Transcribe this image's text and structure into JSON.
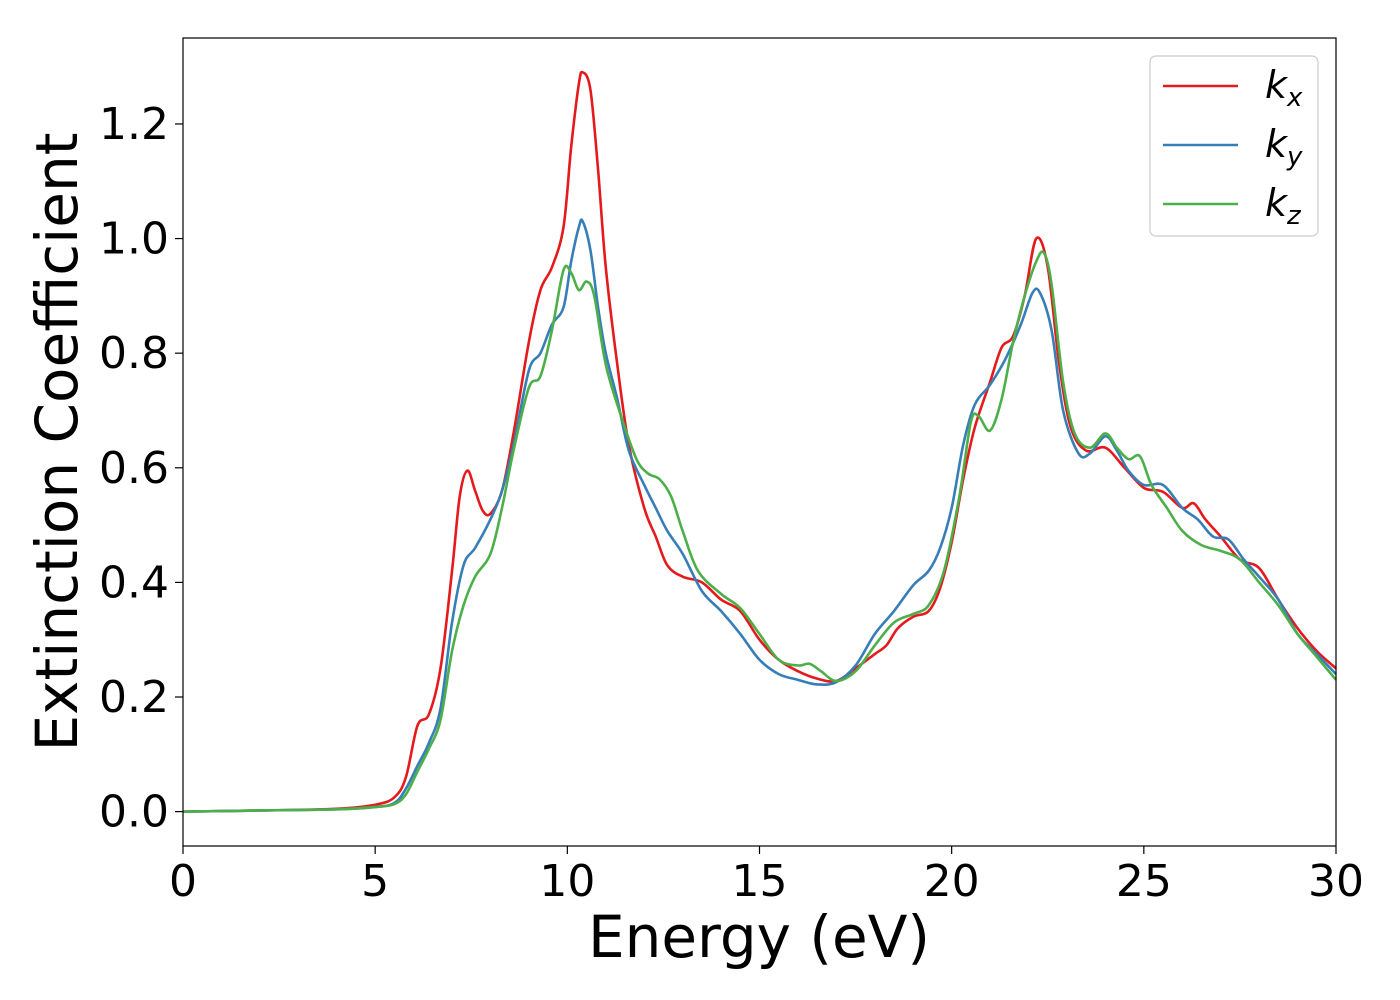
{
  "chart_data": {
    "type": "line",
    "title": "",
    "xlabel": "Energy (eV)",
    "ylabel": "Extinction Coefficient",
    "xlim": [
      0,
      30
    ],
    "ylim": [
      -0.06,
      1.35
    ],
    "xticks": [
      0,
      5,
      10,
      15,
      20,
      25,
      30
    ],
    "xtick_labels": [
      "0",
      "5",
      "10",
      "15",
      "20",
      "25",
      "30"
    ],
    "yticks": [
      0.0,
      0.2,
      0.4,
      0.6,
      0.8,
      1.0,
      1.2
    ],
    "ytick_labels": [
      "0.0",
      "0.2",
      "0.4",
      "0.6",
      "0.8",
      "1.0",
      "1.2"
    ],
    "grid": false,
    "legend_position": "top-right",
    "series": [
      {
        "name": "k_x",
        "label_base": "k",
        "label_sub": "x",
        "color": "#e41a1c",
        "points": [
          [
            0,
            0.0
          ],
          [
            2,
            0.002
          ],
          [
            4,
            0.005
          ],
          [
            5,
            0.012
          ],
          [
            5.5,
            0.025
          ],
          [
            5.8,
            0.06
          ],
          [
            6.1,
            0.15
          ],
          [
            6.4,
            0.17
          ],
          [
            6.7,
            0.25
          ],
          [
            7.0,
            0.42
          ],
          [
            7.2,
            0.55
          ],
          [
            7.4,
            0.595
          ],
          [
            7.6,
            0.56
          ],
          [
            7.8,
            0.525
          ],
          [
            8.0,
            0.52
          ],
          [
            8.3,
            0.56
          ],
          [
            8.6,
            0.66
          ],
          [
            9.0,
            0.82
          ],
          [
            9.3,
            0.91
          ],
          [
            9.6,
            0.95
          ],
          [
            9.9,
            1.02
          ],
          [
            10.1,
            1.16
          ],
          [
            10.3,
            1.27
          ],
          [
            10.4,
            1.29
          ],
          [
            10.6,
            1.26
          ],
          [
            10.8,
            1.12
          ],
          [
            11.0,
            0.95
          ],
          [
            11.3,
            0.78
          ],
          [
            11.6,
            0.64
          ],
          [
            12.0,
            0.53
          ],
          [
            12.3,
            0.48
          ],
          [
            12.6,
            0.43
          ],
          [
            13.0,
            0.41
          ],
          [
            13.5,
            0.4
          ],
          [
            14.0,
            0.37
          ],
          [
            14.5,
            0.35
          ],
          [
            15.0,
            0.3
          ],
          [
            15.5,
            0.265
          ],
          [
            16.0,
            0.245
          ],
          [
            16.5,
            0.232
          ],
          [
            17.0,
            0.228
          ],
          [
            17.5,
            0.25
          ],
          [
            18.0,
            0.275
          ],
          [
            18.3,
            0.29
          ],
          [
            18.6,
            0.32
          ],
          [
            19.0,
            0.34
          ],
          [
            19.4,
            0.35
          ],
          [
            19.7,
            0.39
          ],
          [
            20.0,
            0.47
          ],
          [
            20.3,
            0.58
          ],
          [
            20.6,
            0.67
          ],
          [
            21.0,
            0.75
          ],
          [
            21.3,
            0.81
          ],
          [
            21.6,
            0.83
          ],
          [
            21.9,
            0.9
          ],
          [
            22.2,
            1.0
          ],
          [
            22.5,
            0.95
          ],
          [
            22.8,
            0.78
          ],
          [
            23.1,
            0.67
          ],
          [
            23.5,
            0.63
          ],
          [
            24.0,
            0.635
          ],
          [
            24.5,
            0.6
          ],
          [
            25.0,
            0.565
          ],
          [
            25.5,
            0.558
          ],
          [
            26.0,
            0.53
          ],
          [
            26.3,
            0.538
          ],
          [
            26.6,
            0.51
          ],
          [
            27.0,
            0.48
          ],
          [
            27.5,
            0.44
          ],
          [
            28.0,
            0.425
          ],
          [
            28.5,
            0.37
          ],
          [
            29.0,
            0.32
          ],
          [
            29.5,
            0.28
          ],
          [
            30.0,
            0.25
          ]
        ]
      },
      {
        "name": "k_y",
        "label_base": "k",
        "label_sub": "y",
        "color": "#377eb8",
        "points": [
          [
            0,
            0.0
          ],
          [
            2,
            0.002
          ],
          [
            4,
            0.004
          ],
          [
            5,
            0.008
          ],
          [
            5.5,
            0.015
          ],
          [
            5.8,
            0.04
          ],
          [
            6.1,
            0.08
          ],
          [
            6.4,
            0.12
          ],
          [
            6.7,
            0.18
          ],
          [
            7.0,
            0.33
          ],
          [
            7.3,
            0.43
          ],
          [
            7.6,
            0.46
          ],
          [
            8.0,
            0.51
          ],
          [
            8.3,
            0.56
          ],
          [
            8.6,
            0.64
          ],
          [
            9.0,
            0.77
          ],
          [
            9.3,
            0.8
          ],
          [
            9.6,
            0.85
          ],
          [
            9.9,
            0.88
          ],
          [
            10.1,
            0.96
          ],
          [
            10.3,
            1.02
          ],
          [
            10.4,
            1.03
          ],
          [
            10.6,
            0.98
          ],
          [
            10.8,
            0.88
          ],
          [
            11.0,
            0.8
          ],
          [
            11.3,
            0.72
          ],
          [
            11.6,
            0.63
          ],
          [
            12.0,
            0.57
          ],
          [
            12.3,
            0.53
          ],
          [
            12.6,
            0.49
          ],
          [
            13.0,
            0.45
          ],
          [
            13.5,
            0.385
          ],
          [
            14.0,
            0.35
          ],
          [
            14.5,
            0.31
          ],
          [
            15.0,
            0.265
          ],
          [
            15.5,
            0.24
          ],
          [
            16.0,
            0.23
          ],
          [
            16.5,
            0.222
          ],
          [
            17.0,
            0.226
          ],
          [
            17.5,
            0.255
          ],
          [
            18.0,
            0.31
          ],
          [
            18.5,
            0.35
          ],
          [
            19.0,
            0.395
          ],
          [
            19.4,
            0.42
          ],
          [
            19.7,
            0.46
          ],
          [
            20.0,
            0.53
          ],
          [
            20.3,
            0.64
          ],
          [
            20.6,
            0.71
          ],
          [
            21.0,
            0.745
          ],
          [
            21.4,
            0.79
          ],
          [
            21.8,
            0.85
          ],
          [
            22.1,
            0.905
          ],
          [
            22.3,
            0.905
          ],
          [
            22.6,
            0.84
          ],
          [
            22.9,
            0.7
          ],
          [
            23.3,
            0.625
          ],
          [
            23.6,
            0.625
          ],
          [
            24.0,
            0.655
          ],
          [
            24.3,
            0.63
          ],
          [
            24.6,
            0.595
          ],
          [
            25.0,
            0.57
          ],
          [
            25.5,
            0.57
          ],
          [
            26.0,
            0.53
          ],
          [
            26.4,
            0.51
          ],
          [
            26.8,
            0.48
          ],
          [
            27.2,
            0.475
          ],
          [
            27.6,
            0.44
          ],
          [
            28.0,
            0.41
          ],
          [
            28.5,
            0.37
          ],
          [
            29.0,
            0.31
          ],
          [
            29.5,
            0.275
          ],
          [
            30.0,
            0.24
          ]
        ]
      },
      {
        "name": "k_z",
        "label_base": "k",
        "label_sub": "z",
        "color": "#4daf4a",
        "points": [
          [
            0,
            0.0
          ],
          [
            2,
            0.002
          ],
          [
            4,
            0.004
          ],
          [
            5,
            0.008
          ],
          [
            5.5,
            0.013
          ],
          [
            5.8,
            0.03
          ],
          [
            6.1,
            0.07
          ],
          [
            6.4,
            0.11
          ],
          [
            6.7,
            0.16
          ],
          [
            7.0,
            0.28
          ],
          [
            7.3,
            0.36
          ],
          [
            7.6,
            0.41
          ],
          [
            8.0,
            0.45
          ],
          [
            8.3,
            0.53
          ],
          [
            8.6,
            0.63
          ],
          [
            9.0,
            0.74
          ],
          [
            9.3,
            0.76
          ],
          [
            9.6,
            0.84
          ],
          [
            9.9,
            0.945
          ],
          [
            10.1,
            0.94
          ],
          [
            10.3,
            0.91
          ],
          [
            10.5,
            0.925
          ],
          [
            10.7,
            0.9
          ],
          [
            11.0,
            0.78
          ],
          [
            11.4,
            0.69
          ],
          [
            11.8,
            0.615
          ],
          [
            12.1,
            0.59
          ],
          [
            12.4,
            0.58
          ],
          [
            12.7,
            0.55
          ],
          [
            13.0,
            0.49
          ],
          [
            13.4,
            0.42
          ],
          [
            14.0,
            0.38
          ],
          [
            14.5,
            0.355
          ],
          [
            15.0,
            0.31
          ],
          [
            15.5,
            0.265
          ],
          [
            16.0,
            0.255
          ],
          [
            16.3,
            0.258
          ],
          [
            16.6,
            0.245
          ],
          [
            17.0,
            0.228
          ],
          [
            17.5,
            0.245
          ],
          [
            18.0,
            0.29
          ],
          [
            18.5,
            0.33
          ],
          [
            19.0,
            0.345
          ],
          [
            19.4,
            0.36
          ],
          [
            19.8,
            0.42
          ],
          [
            20.2,
            0.55
          ],
          [
            20.5,
            0.68
          ],
          [
            20.7,
            0.69
          ],
          [
            21.0,
            0.665
          ],
          [
            21.3,
            0.72
          ],
          [
            21.6,
            0.82
          ],
          [
            21.9,
            0.9
          ],
          [
            22.2,
            0.96
          ],
          [
            22.4,
            0.975
          ],
          [
            22.6,
            0.92
          ],
          [
            22.9,
            0.75
          ],
          [
            23.2,
            0.66
          ],
          [
            23.6,
            0.635
          ],
          [
            24.0,
            0.66
          ],
          [
            24.3,
            0.635
          ],
          [
            24.6,
            0.615
          ],
          [
            24.9,
            0.62
          ],
          [
            25.2,
            0.57
          ],
          [
            25.6,
            0.53
          ],
          [
            26.0,
            0.49
          ],
          [
            26.5,
            0.465
          ],
          [
            27.0,
            0.455
          ],
          [
            27.5,
            0.44
          ],
          [
            28.0,
            0.4
          ],
          [
            28.5,
            0.36
          ],
          [
            29.0,
            0.31
          ],
          [
            29.5,
            0.27
          ],
          [
            30.0,
            0.23
          ]
        ]
      }
    ]
  }
}
